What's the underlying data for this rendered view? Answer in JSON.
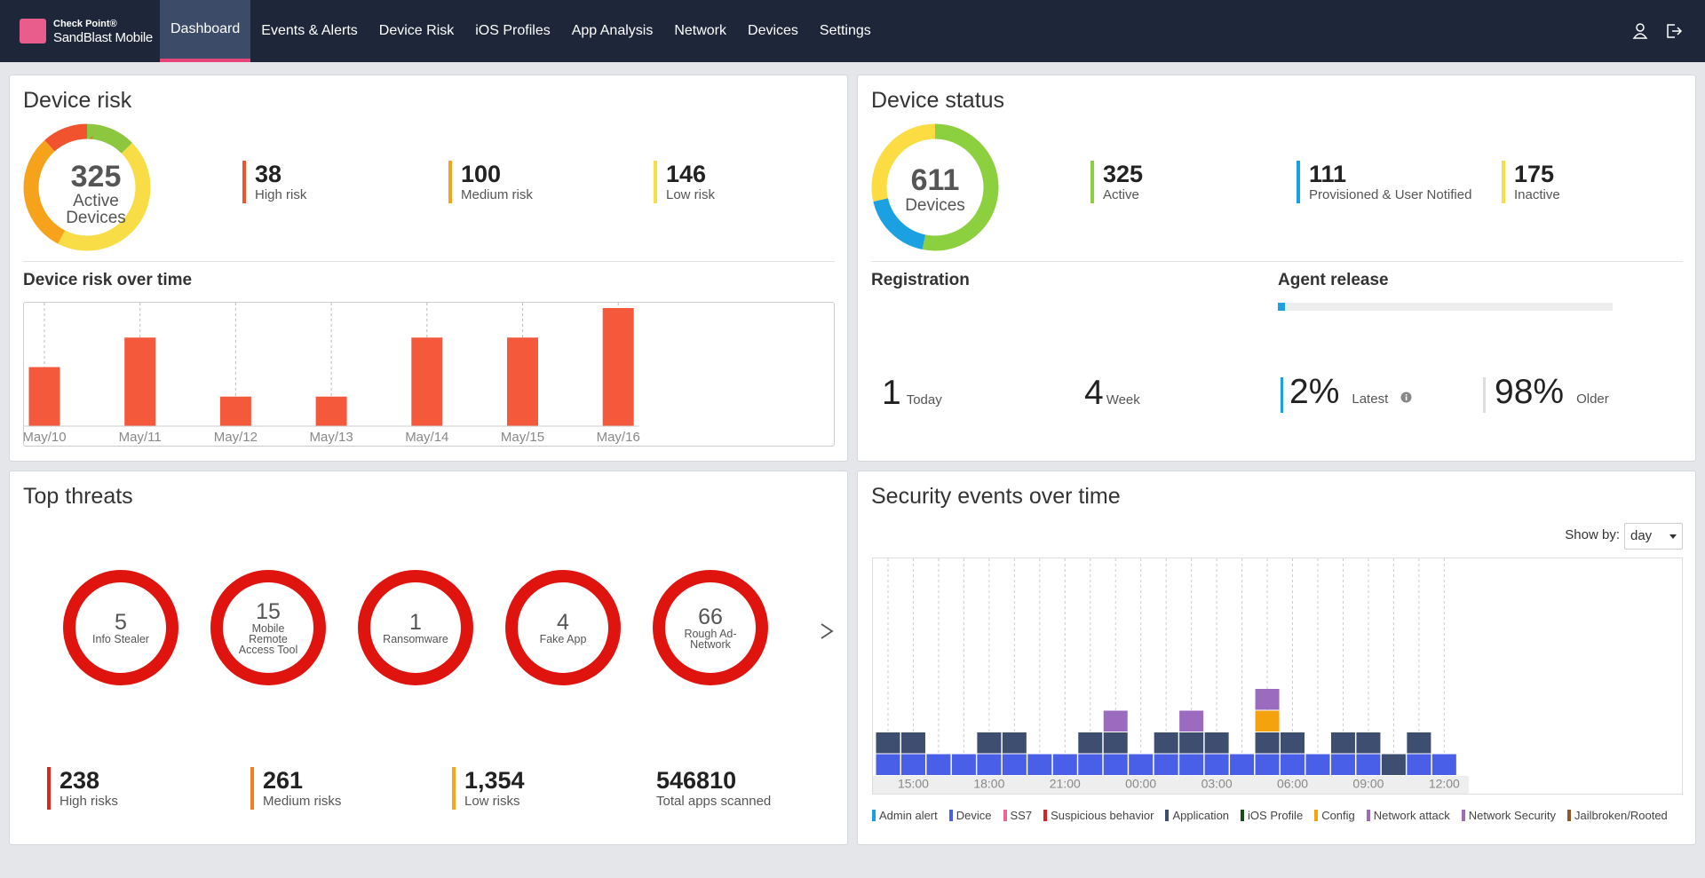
{
  "nav": {
    "brand_top": "Check Point®",
    "brand": "SandBlast Mobile",
    "items": [
      "Dashboard",
      "Events & Alerts",
      "Device Risk",
      "iOS Profiles",
      "App Analysis",
      "Network",
      "Devices",
      "Settings"
    ],
    "active": 0
  },
  "device_risk": {
    "title": "Device risk",
    "total": 325,
    "total_label": "Active Devices",
    "segments": [
      {
        "name": "High risk",
        "value": 38,
        "color": "#f0532d"
      },
      {
        "name": "Medium risk",
        "value": 100,
        "color": "#f7a21b"
      },
      {
        "name": "Low risk",
        "value": 146,
        "color": "#f9dd47"
      },
      {
        "value": 41,
        "color": "#8dc63f"
      }
    ],
    "over_time": {
      "title": "Device risk over time",
      "type": "bar",
      "categories": [
        "May/10",
        "May/11",
        "May/12",
        "May/13",
        "May/14",
        "May/15",
        "May/16"
      ],
      "values": [
        2,
        3,
        1,
        1,
        3,
        3,
        4
      ],
      "color": "#f5593b"
    }
  },
  "device_status": {
    "title": "Device status",
    "total": 611,
    "total_label": "Devices",
    "segments": [
      {
        "name": "Active",
        "value": 325,
        "color": "#8cd03f"
      },
      {
        "name": "Provisioned & User Notified",
        "value": 111,
        "color": "#1ba1e2"
      },
      {
        "name": "Inactive",
        "value": 175,
        "color": "#fbdc43"
      }
    ]
  },
  "registration": {
    "title": "Registration",
    "today": 1,
    "today_label": "Today",
    "week": 4,
    "week_label": "Week"
  },
  "agent_release": {
    "title": "Agent release",
    "latest": {
      "value": 2,
      "label": "2%"
    },
    "latest_label": "Latest",
    "latest_color": "#1ba1e2",
    "older": {
      "value": 98,
      "label": "98%"
    },
    "older_label": "Older"
  },
  "top_threats": {
    "title": "Top threats",
    "color": "#e0140f",
    "threats": [
      {
        "count": 5,
        "name": "Info Stealer"
      },
      {
        "count": 15,
        "name": "Mobile Remote Access Tool"
      },
      {
        "count": 1,
        "name": "Ransomware"
      },
      {
        "count": 4,
        "name": "Fake App"
      },
      {
        "count": 66,
        "name": "Rough Ad-Network"
      }
    ],
    "summary": [
      {
        "value": 238,
        "label": "High risks",
        "color": "#e3241b"
      },
      {
        "value": 261,
        "label": "Medium risks",
        "color": "#f07f1f"
      },
      {
        "value": 1354,
        "value_label": "1,354",
        "label": "Low risks",
        "color": "#f5a61d"
      },
      {
        "value": 546810,
        "label": "Total apps scanned"
      }
    ]
  },
  "security_events": {
    "title": "Security events over time",
    "show_by_label": "Show by:",
    "show_by": "day",
    "chart": {
      "type": "stacked-bar",
      "categories": [
        null,
        "15:00",
        null,
        null,
        "18:00",
        null,
        null,
        "21:00",
        null,
        null,
        "00:00",
        null,
        null,
        "03:00",
        null,
        null,
        "06:00",
        null,
        null,
        "09:00",
        null,
        null,
        "12:00"
      ],
      "series": [
        {
          "name": "Admin alert",
          "color": "#1aa0e0",
          "values": [
            0,
            0,
            0,
            0,
            0,
            0,
            0,
            0,
            0,
            0,
            0,
            0,
            0,
            0,
            0,
            0,
            0,
            0,
            0,
            0,
            0,
            0,
            0
          ]
        },
        {
          "name": "Device",
          "color": "#4a5fe8",
          "values": [
            1,
            1,
            1,
            1,
            1,
            1,
            1,
            1,
            1,
            1,
            1,
            1,
            1,
            1,
            1,
            1,
            1,
            1,
            1,
            1,
            0,
            1,
            1
          ]
        },
        {
          "name": "SS7",
          "color": "#f06292",
          "values": [
            0,
            0,
            0,
            0,
            0,
            0,
            0,
            0,
            0,
            0,
            0,
            0,
            0,
            0,
            0,
            0,
            0,
            0,
            0,
            0,
            0,
            0,
            0
          ]
        },
        {
          "name": "Suspicious behavior",
          "color": "#e02020",
          "values": [
            0,
            0,
            0,
            0,
            0,
            0,
            0,
            0,
            0,
            0,
            0,
            0,
            0,
            0,
            0,
            0,
            0,
            0,
            0,
            0,
            0,
            0,
            0
          ]
        },
        {
          "name": "Application",
          "color": "#3d4e70",
          "values": [
            1,
            1,
            0,
            0,
            1,
            1,
            0,
            0,
            1,
            1,
            0,
            1,
            1,
            1,
            0,
            1,
            1,
            0,
            1,
            1,
            1,
            1,
            0
          ]
        },
        {
          "name": "iOS Profile",
          "color": "#1d4a1d",
          "values": [
            0,
            0,
            0,
            0,
            0,
            0,
            0,
            0,
            0,
            0,
            0,
            0,
            0,
            0,
            0,
            0,
            0,
            0,
            0,
            0,
            0,
            0,
            0
          ]
        },
        {
          "name": "Config",
          "color": "#f5a20f",
          "values": [
            0,
            0,
            0,
            0,
            0,
            0,
            0,
            0,
            0,
            0,
            0,
            0,
            0,
            0,
            0,
            1,
            0,
            0,
            0,
            0,
            0,
            0,
            0
          ]
        },
        {
          "name": "Network attack",
          "color": "#9a6bbf",
          "values": [
            0,
            0,
            0,
            0,
            0,
            0,
            0,
            0,
            0,
            1,
            0,
            0,
            1,
            0,
            0,
            1,
            0,
            0,
            0,
            0,
            0,
            0,
            0
          ]
        },
        {
          "name": "Network Security",
          "color": "#a06bb0",
          "values": [
            0,
            0,
            0,
            0,
            0,
            0,
            0,
            0,
            0,
            0,
            0,
            0,
            0,
            0,
            0,
            0,
            0,
            0,
            0,
            0,
            0,
            0,
            0
          ]
        },
        {
          "name": "Jailbroken/Rooted",
          "color": "#8b5a2b",
          "values": [
            0,
            0,
            0,
            0,
            0,
            0,
            0,
            0,
            0,
            0,
            0,
            0,
            0,
            0,
            0,
            0,
            0,
            0,
            0,
            0,
            0,
            0,
            0
          ]
        }
      ]
    }
  }
}
